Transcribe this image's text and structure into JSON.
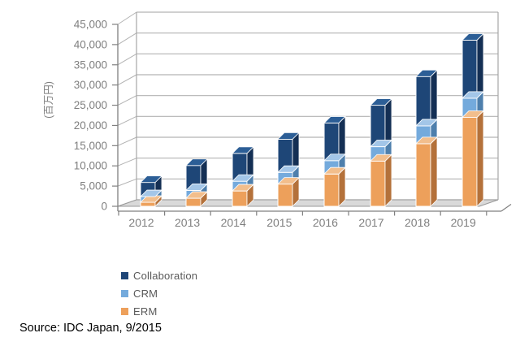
{
  "source": {
    "text": "Source: IDC Japan, 9/2015"
  },
  "chart_data": {
    "type": "bar",
    "variant": "3d-stacked-column",
    "title": "",
    "xlabel": "",
    "ylabel": "(百万円)",
    "ylim": [
      0,
      45000
    ],
    "ytick_step": 5000,
    "ytick_labels": [
      "0",
      "5,000",
      "10,000",
      "15,000",
      "20,000",
      "25,000",
      "30,000",
      "35,000",
      "40,000",
      "45,000"
    ],
    "grid": true,
    "legend_position": "bottom-left",
    "categories": [
      "2012",
      "2013",
      "2014",
      "2015",
      "2016",
      "2017",
      "2018",
      "2019"
    ],
    "stack_order_bottom_to_top": [
      "ERM",
      "CRM",
      "Collaboration"
    ],
    "series": [
      {
        "name": "Collaboration",
        "color": "#1E4677",
        "color_side": "#142F54",
        "color_top": "#2C5E96",
        "values": [
          3500,
          6150,
          6900,
          8200,
          9300,
          10250,
          12200,
          14350
        ]
      },
      {
        "name": "CRM",
        "color": "#74AADC",
        "color_side": "#4E7FAC",
        "color_top": "#A3C6E8",
        "values": [
          1400,
          1950,
          2400,
          2900,
          3300,
          3550,
          4400,
          4750
        ]
      },
      {
        "name": "ERM",
        "color": "#EDA05B",
        "color_side": "#B4713A",
        "color_top": "#F2BE8C",
        "values": [
          1000,
          2000,
          3800,
          5500,
          8000,
          11200,
          15500,
          22000
        ]
      }
    ],
    "totals": [
      5900,
      10100,
      13100,
      16600,
      20600,
      25000,
      32100,
      41100
    ],
    "colors": {
      "axis": "#808080",
      "gridline": "#B3B3B3",
      "wall_edge": "#A6A6A6",
      "floor_fill": "#D9D9D9",
      "floor_edge": "#999999",
      "tick_label": "#7F7F7F",
      "category_label": "#7F7F7F",
      "axis_title": "#7F7F7F"
    }
  }
}
